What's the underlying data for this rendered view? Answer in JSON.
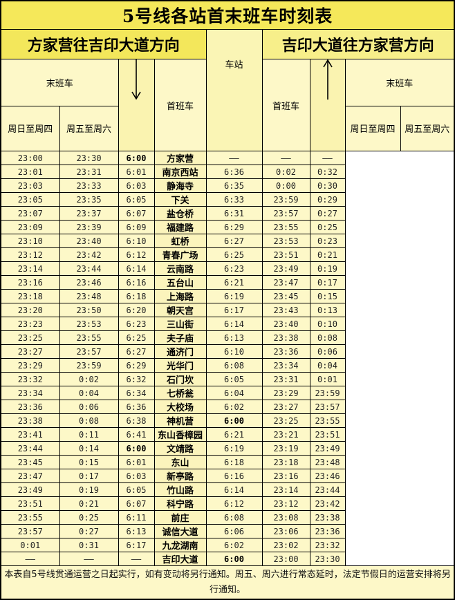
{
  "title": "5号线各站首末班车时刻表",
  "directions": {
    "left": "方家营往吉印大道方向",
    "right": "吉印大道往方家营方向"
  },
  "headers": {
    "station": "车站",
    "first_train": "首班车",
    "last_train": "末班车",
    "sun_thu": "周日至周四",
    "fri_sat": "周五至周六"
  },
  "arrows": {
    "left": "down-arrow-icon",
    "right": "up-arrow-icon"
  },
  "rows": [
    {
      "station": "方家营",
      "l_sun_thu": "23:00",
      "l_fri_sat": "23:30",
      "l_first": "6:00",
      "r_first": "——",
      "r_sun_thu": "——",
      "r_fri_sat": "——"
    },
    {
      "station": "南京西站",
      "l_sun_thu": "23:01",
      "l_fri_sat": "23:31",
      "l_first": "6:01",
      "r_first": "6:36",
      "r_sun_thu": "0:02",
      "r_fri_sat": "0:32"
    },
    {
      "station": "静海寺",
      "l_sun_thu": "23:03",
      "l_fri_sat": "23:33",
      "l_first": "6:03",
      "r_first": "6:35",
      "r_sun_thu": "0:00",
      "r_fri_sat": "0:30"
    },
    {
      "station": "下关",
      "l_sun_thu": "23:05",
      "l_fri_sat": "23:35",
      "l_first": "6:05",
      "r_first": "6:33",
      "r_sun_thu": "23:59",
      "r_fri_sat": "0:29"
    },
    {
      "station": "盐仓桥",
      "l_sun_thu": "23:07",
      "l_fri_sat": "23:37",
      "l_first": "6:07",
      "r_first": "6:31",
      "r_sun_thu": "23:57",
      "r_fri_sat": "0:27"
    },
    {
      "station": "福建路",
      "l_sun_thu": "23:09",
      "l_fri_sat": "23:39",
      "l_first": "6:09",
      "r_first": "6:29",
      "r_sun_thu": "23:55",
      "r_fri_sat": "0:25"
    },
    {
      "station": "虹桥",
      "l_sun_thu": "23:10",
      "l_fri_sat": "23:40",
      "l_first": "6:10",
      "r_first": "6:27",
      "r_sun_thu": "23:53",
      "r_fri_sat": "0:23"
    },
    {
      "station": "青春广场",
      "l_sun_thu": "23:12",
      "l_fri_sat": "23:42",
      "l_first": "6:12",
      "r_first": "6:25",
      "r_sun_thu": "23:51",
      "r_fri_sat": "0:21"
    },
    {
      "station": "云南路",
      "l_sun_thu": "23:14",
      "l_fri_sat": "23:44",
      "l_first": "6:14",
      "r_first": "6:23",
      "r_sun_thu": "23:49",
      "r_fri_sat": "0:19"
    },
    {
      "station": "五台山",
      "l_sun_thu": "23:16",
      "l_fri_sat": "23:46",
      "l_first": "6:16",
      "r_first": "6:21",
      "r_sun_thu": "23:47",
      "r_fri_sat": "0:17"
    },
    {
      "station": "上海路",
      "l_sun_thu": "23:18",
      "l_fri_sat": "23:48",
      "l_first": "6:18",
      "r_first": "6:19",
      "r_sun_thu": "23:45",
      "r_fri_sat": "0:15"
    },
    {
      "station": "朝天宫",
      "l_sun_thu": "23:20",
      "l_fri_sat": "23:50",
      "l_first": "6:20",
      "r_first": "6:17",
      "r_sun_thu": "23:43",
      "r_fri_sat": "0:13"
    },
    {
      "station": "三山街",
      "l_sun_thu": "23:23",
      "l_fri_sat": "23:53",
      "l_first": "6:23",
      "r_first": "6:14",
      "r_sun_thu": "23:40",
      "r_fri_sat": "0:10"
    },
    {
      "station": "夫子庙",
      "l_sun_thu": "23:25",
      "l_fri_sat": "23:55",
      "l_first": "6:25",
      "r_first": "6:13",
      "r_sun_thu": "23:38",
      "r_fri_sat": "0:08"
    },
    {
      "station": "通济门",
      "l_sun_thu": "23:27",
      "l_fri_sat": "23:57",
      "l_first": "6:27",
      "r_first": "6:10",
      "r_sun_thu": "23:36",
      "r_fri_sat": "0:06"
    },
    {
      "station": "光华门",
      "l_sun_thu": "23:29",
      "l_fri_sat": "23:59",
      "l_first": "6:29",
      "r_first": "6:08",
      "r_sun_thu": "23:34",
      "r_fri_sat": "0:04"
    },
    {
      "station": "石门坎",
      "l_sun_thu": "23:32",
      "l_fri_sat": "0:02",
      "l_first": "6:32",
      "r_first": "6:05",
      "r_sun_thu": "23:31",
      "r_fri_sat": "0:01"
    },
    {
      "station": "七桥瓮",
      "l_sun_thu": "23:34",
      "l_fri_sat": "0:04",
      "l_first": "6:34",
      "r_first": "6:04",
      "r_sun_thu": "23:29",
      "r_fri_sat": "23:59"
    },
    {
      "station": "大校场",
      "l_sun_thu": "23:36",
      "l_fri_sat": "0:06",
      "l_first": "6:36",
      "r_first": "6:02",
      "r_sun_thu": "23:27",
      "r_fri_sat": "23:57"
    },
    {
      "station": "神机营",
      "l_sun_thu": "23:38",
      "l_fri_sat": "0:08",
      "l_first": "6:38",
      "r_first": "6:00",
      "r_sun_thu": "23:25",
      "r_fri_sat": "23:55"
    },
    {
      "station": "东山香樟园",
      "l_sun_thu": "23:41",
      "l_fri_sat": "0:11",
      "l_first": "6:41",
      "r_first": "6:21",
      "r_sun_thu": "23:21",
      "r_fri_sat": "23:51"
    },
    {
      "station": "文靖路",
      "l_sun_thu": "23:44",
      "l_fri_sat": "0:14",
      "l_first": "6:00",
      "r_first": "6:19",
      "r_sun_thu": "23:19",
      "r_fri_sat": "23:49"
    },
    {
      "station": "东山",
      "l_sun_thu": "23:45",
      "l_fri_sat": "0:15",
      "l_first": "6:01",
      "r_first": "6:18",
      "r_sun_thu": "23:18",
      "r_fri_sat": "23:48"
    },
    {
      "station": "新亭路",
      "l_sun_thu": "23:47",
      "l_fri_sat": "0:17",
      "l_first": "6:03",
      "r_first": "6:16",
      "r_sun_thu": "23:16",
      "r_fri_sat": "23:46"
    },
    {
      "station": "竹山路",
      "l_sun_thu": "23:49",
      "l_fri_sat": "0:19",
      "l_first": "6:05",
      "r_first": "6:14",
      "r_sun_thu": "23:14",
      "r_fri_sat": "23:44"
    },
    {
      "station": "科宁路",
      "l_sun_thu": "23:51",
      "l_fri_sat": "0:21",
      "l_first": "6:07",
      "r_first": "6:12",
      "r_sun_thu": "23:12",
      "r_fri_sat": "23:42"
    },
    {
      "station": "前庄",
      "l_sun_thu": "23:55",
      "l_fri_sat": "0:25",
      "l_first": "6:11",
      "r_first": "6:08",
      "r_sun_thu": "23:08",
      "r_fri_sat": "23:38"
    },
    {
      "station": "诚信大道",
      "l_sun_thu": "23:57",
      "l_fri_sat": "0:27",
      "l_first": "6:13",
      "r_first": "6:06",
      "r_sun_thu": "23:06",
      "r_fri_sat": "23:36"
    },
    {
      "station": "九龙湖南",
      "l_sun_thu": "0:01",
      "l_fri_sat": "0:31",
      "l_first": "6:17",
      "r_first": "6:02",
      "r_sun_thu": "23:02",
      "r_fri_sat": "23:32"
    },
    {
      "station": "吉印大道",
      "l_sun_thu": "——",
      "l_fri_sat": "——",
      "l_first": "——",
      "r_first": "6:00",
      "r_sun_thu": "23:00",
      "r_fri_sat": "23:30"
    }
  ],
  "footnote": "本表自5号线贯通运营之日起实行，如有变动将另行通知。周五、周六进行常态延时，法定节假日的运营安排将另行通知。"
}
